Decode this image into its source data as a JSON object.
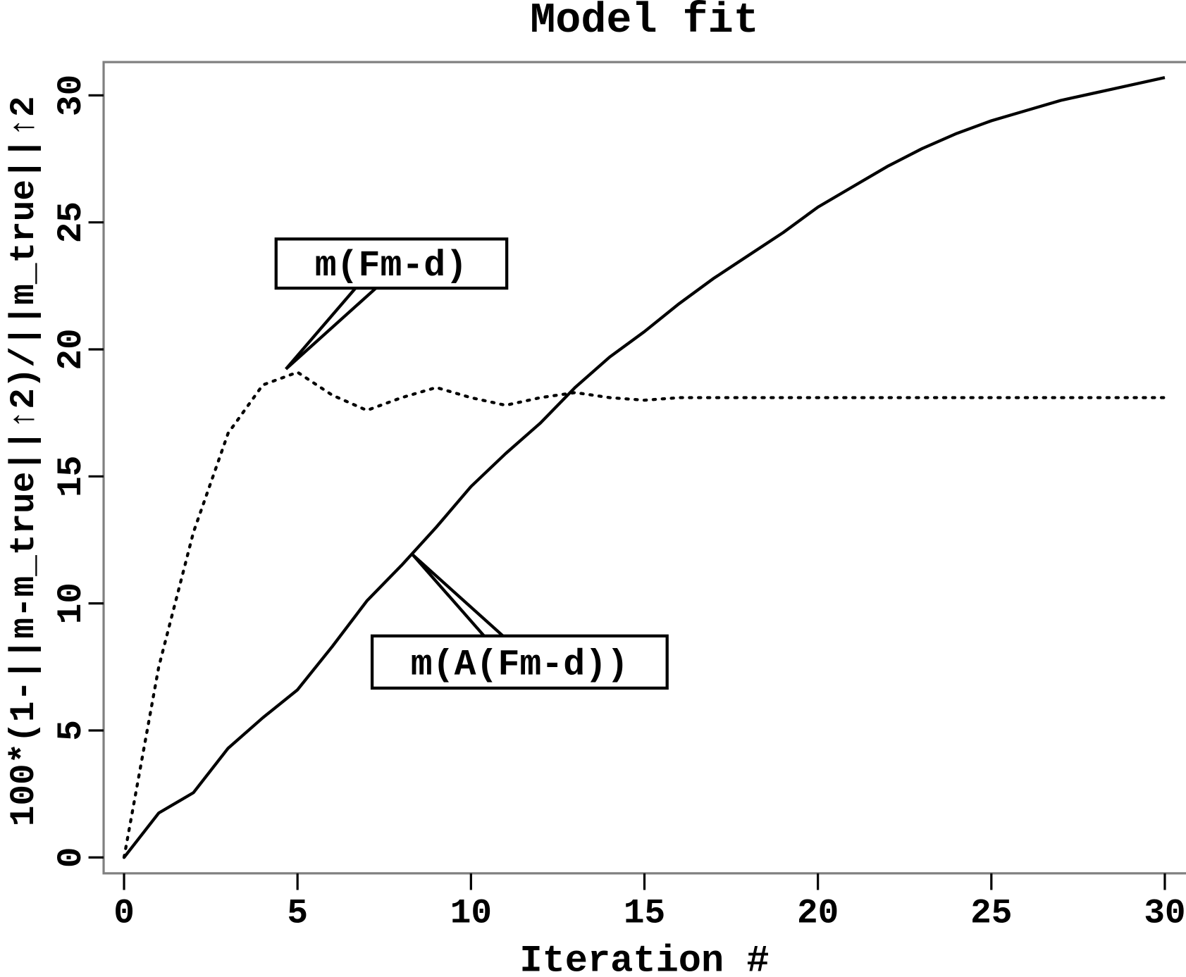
{
  "chart_data": {
    "type": "line",
    "title": "Model fit",
    "xlabel": "Iteration #",
    "ylabel": "100*(1-||m-m_true||↑2)/||m_true||↑2",
    "xlim": [
      0,
      30
    ],
    "ylim": [
      0,
      30
    ],
    "xticks": [
      "0",
      "5",
      "10",
      "15",
      "20",
      "25",
      "30"
    ],
    "yticks": [
      "0",
      "5",
      "10",
      "15",
      "20",
      "25",
      "30"
    ],
    "grid": false,
    "x": [
      0,
      1,
      2,
      3,
      4,
      5,
      6,
      7,
      8,
      9,
      10,
      11,
      12,
      13,
      14,
      15,
      16,
      17,
      18,
      19,
      20,
      21,
      22,
      23,
      24,
      25,
      26,
      27,
      28,
      29,
      30
    ],
    "series": [
      {
        "name": "m(A(Fm-d))",
        "style": "solid",
        "values": [
          0,
          1.75,
          2.55,
          4.3,
          5.5,
          6.6,
          8.3,
          10.1,
          11.5,
          13.0,
          14.6,
          15.9,
          17.1,
          18.5,
          19.7,
          20.7,
          21.8,
          22.8,
          23.7,
          24.6,
          25.6,
          26.4,
          27.2,
          27.9,
          28.5,
          29.0,
          29.4,
          29.8,
          30.1,
          30.4,
          30.7
        ]
      },
      {
        "name": "m(Fm-d)",
        "style": "dotted",
        "values": [
          0,
          7.5,
          12.8,
          16.7,
          18.6,
          19.1,
          18.2,
          17.6,
          18.1,
          18.5,
          18.1,
          17.8,
          18.1,
          18.3,
          18.1,
          18.0,
          18.1,
          18.1,
          18.1,
          18.1,
          18.1,
          18.1,
          18.1,
          18.1,
          18.1,
          18.1,
          18.1,
          18.1,
          18.1,
          18.1,
          18.1
        ]
      }
    ],
    "annotations": [
      "m(Fm-d)",
      "m(A(Fm-d))"
    ],
    "colors": {
      "line": "#000000",
      "frame": "#808080"
    }
  }
}
